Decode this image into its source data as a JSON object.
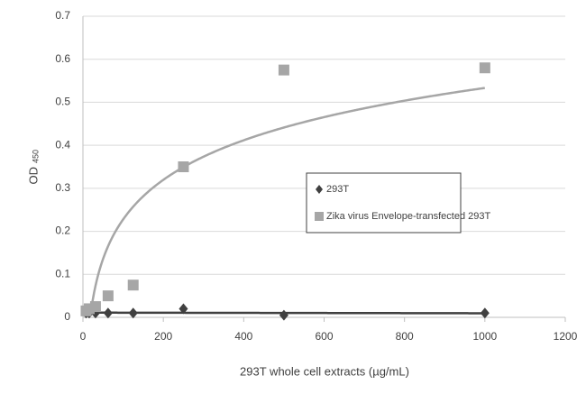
{
  "chart_data": {
    "type": "scatter",
    "x_label": "293T whole cell extracts (µg/mL)",
    "y_label": "OD",
    "y_label_sub": "450",
    "series": [
      {
        "name": "293T",
        "color": "#404040",
        "marker": "diamond",
        "trendline": "linear",
        "x": [
          7.8,
          15.6,
          31.25,
          62.5,
          125,
          250,
          500,
          1000
        ],
        "values": [
          0.01,
          0.01,
          0.01,
          0.01,
          0.01,
          0.02,
          0.005,
          0.01
        ]
      },
      {
        "name": "Zika virus Envelope-transfected 293T",
        "color": "#a6a6a6",
        "marker": "square",
        "trendline": "log",
        "x": [
          7.8,
          15.6,
          31.25,
          62.5,
          125,
          250,
          500,
          1000
        ],
        "values": [
          0.015,
          0.02,
          0.025,
          0.05,
          0.075,
          0.35,
          0.575,
          0.58
        ]
      }
    ],
    "xlim": [
      0,
      1200
    ],
    "xticks": [
      0,
      200,
      400,
      600,
      800,
      1000,
      1200
    ],
    "ylim": [
      0,
      0.7
    ],
    "yticks": [
      0,
      0.1,
      0.2,
      0.3,
      0.4,
      0.5,
      0.6,
      0.7
    ],
    "grid": true
  }
}
